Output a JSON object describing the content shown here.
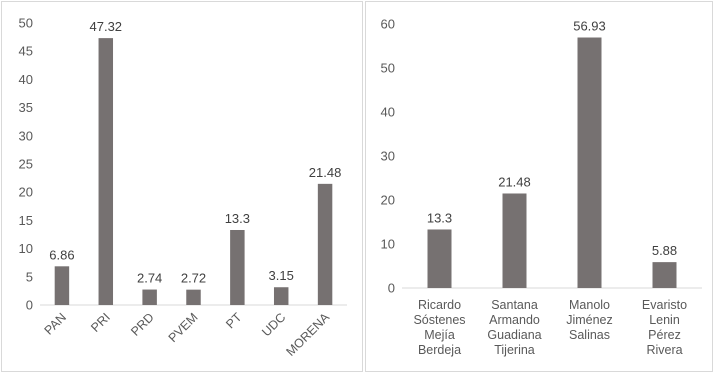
{
  "chart_data": [
    {
      "type": "bar",
      "categories": [
        "PAN",
        "PRI",
        "PRD",
        "PVEM",
        "PT",
        "UDC",
        "MORENA"
      ],
      "values": [
        6.86,
        47.32,
        2.74,
        2.72,
        13.3,
        3.15,
        21.48
      ],
      "value_labels": [
        "6.86",
        "47.32",
        "2.74",
        "2.72",
        "13.3",
        "3.15",
        "21.48"
      ],
      "yticks": [
        "0",
        "5",
        "10",
        "15",
        "20",
        "25",
        "30",
        "35",
        "40",
        "45",
        "50"
      ],
      "ylim": [
        0,
        50
      ],
      "grid": false,
      "bar_color": "#767171",
      "category_labels_rotated": true
    },
    {
      "type": "bar",
      "categories": [
        [
          "Ricardo",
          "Sóstenes",
          "Mejía",
          "Berdeja"
        ],
        [
          "Santana",
          "Armando",
          "Guadiana",
          "Tijerina"
        ],
        [
          "Manolo",
          "Jiménez",
          "Salinas"
        ],
        [
          "Evaristo",
          "Lenin",
          "Pérez",
          "Rivera"
        ]
      ],
      "values": [
        13.3,
        21.48,
        56.93,
        5.88
      ],
      "value_labels": [
        "13.3",
        "21.48",
        "56.93",
        "5.88"
      ],
      "yticks": [
        "0",
        "10",
        "20",
        "30",
        "40",
        "50",
        "60"
      ],
      "ylim": [
        0,
        60
      ],
      "grid": false,
      "bar_color": "#767171",
      "category_labels_rotated": false
    }
  ]
}
